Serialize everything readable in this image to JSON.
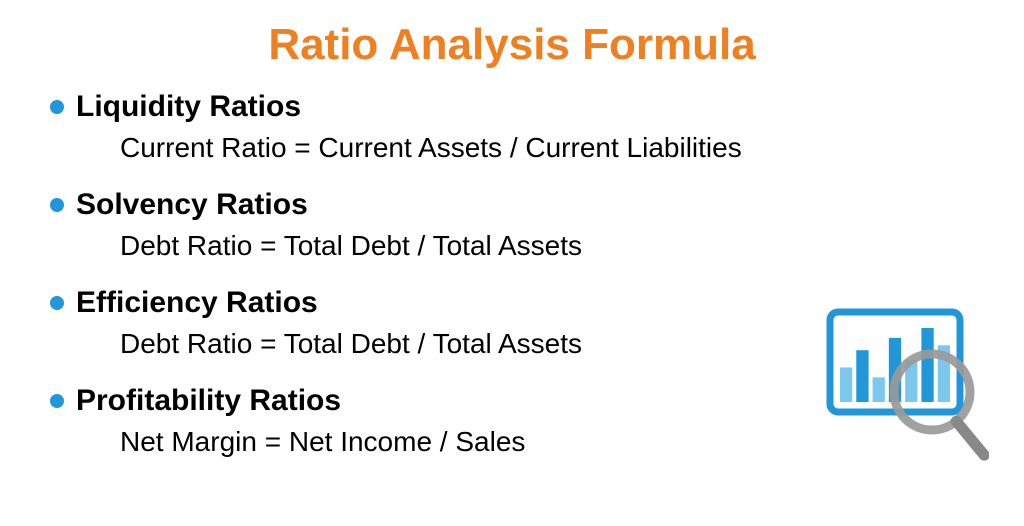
{
  "title": "Ratio Analysis Formula",
  "title_color": "#ee8022",
  "bullet_color": "#2196d8",
  "text_color": "#000000",
  "background_color": "#ffffff",
  "sections": [
    {
      "title": "Liquidity Ratios",
      "formula": "Current Ratio = Current Assets / Current Liabilities"
    },
    {
      "title": "Solvency Ratios",
      "formula": "Debt Ratio = Total Debt / Total Assets"
    },
    {
      "title": "Efficiency Ratios",
      "formula": "Debt Ratio = Total Debt / Total Assets"
    },
    {
      "title": "Profitability Ratios",
      "formula": "Net Margin = Net Income / Sales"
    }
  ],
  "chart_icon": {
    "frame_color": "#2196d8",
    "bar_color_light": "#7cc8ed",
    "bar_color_dark": "#2196d8",
    "inner_bg": "#ffffff",
    "magnifier_ring": "#999999",
    "magnifier_handle": "#888888",
    "bars": [
      28,
      42,
      20,
      52,
      34,
      60,
      46
    ]
  }
}
